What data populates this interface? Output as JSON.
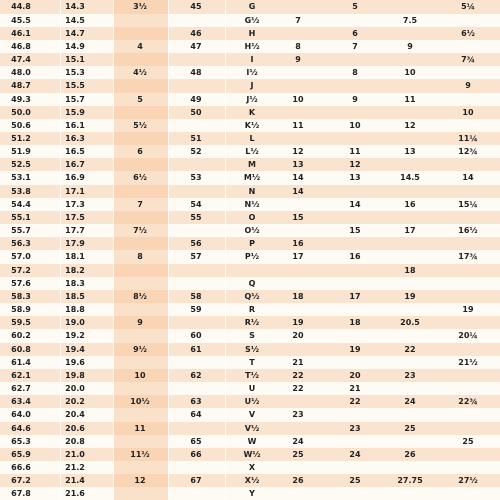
{
  "table": {
    "rows": [
      [
        "44.8",
        "14.3",
        "3½",
        "45",
        "G",
        null,
        "5",
        null,
        "5¼"
      ],
      [
        "45.5",
        "14.5",
        null,
        null,
        "G½",
        "7",
        null,
        "7.5",
        null
      ],
      [
        "46.1",
        "14.7",
        null,
        "46",
        "H",
        null,
        "6",
        null,
        "6½"
      ],
      [
        "46.8",
        "14.9",
        "4",
        "47",
        "H½",
        "8",
        "7",
        "9",
        null
      ],
      [
        "47.4",
        "15.1",
        null,
        null,
        "I",
        "9",
        null,
        null,
        "7¾"
      ],
      [
        "48.0",
        "15.3",
        "4½",
        "48",
        "I½",
        null,
        "8",
        "10",
        null
      ],
      [
        "48.7",
        "15.5",
        null,
        null,
        "J",
        null,
        null,
        null,
        "9"
      ],
      [
        "49.3",
        "15.7",
        "5",
        "49",
        "J½",
        "10",
        "9",
        "11",
        null
      ],
      [
        "50.0",
        "15.9",
        null,
        "50",
        "K",
        null,
        null,
        null,
        "10"
      ],
      [
        "50.6",
        "16.1",
        "5½",
        null,
        "K½",
        "11",
        "10",
        "12",
        null
      ],
      [
        "51.2",
        "16.3",
        null,
        "51",
        "L",
        null,
        null,
        null,
        "11¼"
      ],
      [
        "51.9",
        "16.5",
        "6",
        "52",
        "L½",
        "12",
        "11",
        "13",
        "12¾"
      ],
      [
        "52.5",
        "16.7",
        null,
        null,
        "M",
        "13",
        "12",
        null,
        null
      ],
      [
        "53.1",
        "16.9",
        "6½",
        "53",
        "M½",
        "14",
        "13",
        "14.5",
        "14"
      ],
      [
        "53.8",
        "17.1",
        null,
        null,
        "N",
        "14",
        null,
        null,
        null
      ],
      [
        "54.4",
        "17.3",
        "7",
        "54",
        "N½",
        null,
        "14",
        "16",
        "15¼"
      ],
      [
        "55.1",
        "17.5",
        null,
        "55",
        "O",
        "15",
        null,
        null,
        null
      ],
      [
        "55.7",
        "17.7",
        "7½",
        null,
        "O½",
        null,
        "15",
        "17",
        "16½"
      ],
      [
        "56.3",
        "17.9",
        null,
        "56",
        "P",
        "16",
        null,
        null,
        null
      ],
      [
        "57.0",
        "18.1",
        "8",
        "57",
        "P½",
        "17",
        "16",
        null,
        "17¾"
      ],
      [
        "57.2",
        "18.2",
        null,
        null,
        null,
        null,
        null,
        "18",
        null
      ],
      [
        "57.6",
        "18.3",
        null,
        null,
        "Q",
        null,
        null,
        null,
        null
      ],
      [
        "58.3",
        "18.5",
        "8½",
        "58",
        "Q½",
        "18",
        "17",
        "19",
        null
      ],
      [
        "58.9",
        "18.8",
        null,
        "59",
        "R",
        null,
        null,
        null,
        "19"
      ],
      [
        "59.5",
        "19.0",
        "9",
        null,
        "R½",
        "19",
        "18",
        "20.5",
        null
      ],
      [
        "60.2",
        "19.2",
        null,
        "60",
        "S",
        "20",
        null,
        null,
        "20¼"
      ],
      [
        "60.8",
        "19.4",
        "9½",
        "61",
        "S½",
        null,
        "19",
        "22",
        null
      ],
      [
        "61.4",
        "19.6",
        null,
        null,
        "T",
        "21",
        null,
        null,
        "21½"
      ],
      [
        "62.1",
        "19.8",
        "10",
        "62",
        "T½",
        "22",
        "20",
        "23",
        null
      ],
      [
        "62.7",
        "20.0",
        null,
        null,
        "U",
        "22",
        "21",
        null,
        null
      ],
      [
        "63.4",
        "20.2",
        "10½",
        "63",
        "U½",
        null,
        "22",
        "24",
        "22¾"
      ],
      [
        "64.0",
        "20.4",
        null,
        "64",
        "V",
        "23",
        null,
        null,
        null
      ],
      [
        "64.6",
        "20.6",
        "11",
        null,
        "V½",
        null,
        "23",
        "25",
        null
      ],
      [
        "65.3",
        "20.8",
        null,
        "65",
        "W",
        "24",
        null,
        null,
        "25"
      ],
      [
        "65.9",
        "21.0",
        "11½",
        "66",
        "W½",
        "25",
        "24",
        "26",
        null
      ],
      [
        "66.6",
        "21.2",
        null,
        null,
        "X",
        null,
        null,
        null,
        null
      ],
      [
        "67.2",
        "21.4",
        "12",
        "67",
        "X½",
        "26",
        "25",
        "27.75",
        "27½"
      ],
      [
        "67.8",
        "21.6",
        null,
        null,
        "Y",
        null,
        null,
        null,
        null
      ]
    ]
  }
}
